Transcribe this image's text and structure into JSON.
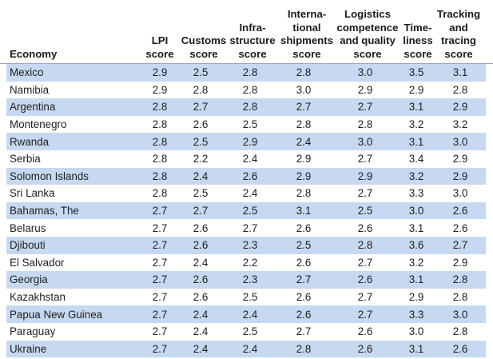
{
  "table": {
    "columns": [
      "Economy",
      "LPI\nscore",
      "Customs\nscore",
      "Infra-\nstructure\nscore",
      "Interna-\ntional\nshipments\nscore",
      "Logistics\ncompetence\nand quality\nscore",
      "Time-\nliness\nscore",
      "Tracking\nand\ntracing\nscore"
    ],
    "rows": [
      [
        "Mexico",
        "2.9",
        "2.5",
        "2.8",
        "2.8",
        "3.0",
        "3.5",
        "3.1"
      ],
      [
        "Namibia",
        "2.9",
        "2.8",
        "2.8",
        "3.0",
        "2.9",
        "2.9",
        "2.8"
      ],
      [
        "Argentina",
        "2.8",
        "2.7",
        "2.8",
        "2.7",
        "2.7",
        "3.1",
        "2.9"
      ],
      [
        "Montenegro",
        "2.8",
        "2.6",
        "2.5",
        "2.8",
        "2.8",
        "3.2",
        "3.2"
      ],
      [
        "Rwanda",
        "2.8",
        "2.5",
        "2.9",
        "2.4",
        "3.0",
        "3.1",
        "3.0"
      ],
      [
        "Serbia",
        "2.8",
        "2.2",
        "2.4",
        "2.9",
        "2.7",
        "3.4",
        "2.9"
      ],
      [
        "Solomon Islands",
        "2.8",
        "2.4",
        "2.6",
        "2.9",
        "2.9",
        "3.2",
        "2.9"
      ],
      [
        "Sri Lanka",
        "2.8",
        "2.5",
        "2.4",
        "2.8",
        "2.7",
        "3.3",
        "3.0"
      ],
      [
        "Bahamas, The",
        "2.7",
        "2.7",
        "2.5",
        "3.1",
        "2.5",
        "3.0",
        "2.6"
      ],
      [
        "Belarus",
        "2.7",
        "2.6",
        "2.7",
        "2.6",
        "2.6",
        "3.1",
        "2.6"
      ],
      [
        "Djibouti",
        "2.7",
        "2.6",
        "2.3",
        "2.5",
        "2.8",
        "3.6",
        "2.7"
      ],
      [
        "El Salvador",
        "2.7",
        "2.4",
        "2.2",
        "2.6",
        "2.7",
        "3.2",
        "2.9"
      ],
      [
        "Georgia",
        "2.7",
        "2.6",
        "2.3",
        "2.7",
        "2.6",
        "3.1",
        "2.8"
      ],
      [
        "Kazakhstan",
        "2.7",
        "2.6",
        "2.5",
        "2.6",
        "2.7",
        "2.9",
        "2.8"
      ],
      [
        "Papua New Guinea",
        "2.7",
        "2.4",
        "2.4",
        "2.6",
        "2.7",
        "3.3",
        "3.0"
      ],
      [
        "Paraguay",
        "2.7",
        "2.4",
        "2.5",
        "2.7",
        "2.6",
        "3.0",
        "2.8"
      ],
      [
        "Ukraine",
        "2.7",
        "2.4",
        "2.4",
        "2.8",
        "2.6",
        "3.1",
        "2.6"
      ]
    ]
  },
  "colors": {
    "row_stripe": "#c6d9f1",
    "row_plain": "#ffffff",
    "header_rule": "#9aa7b8"
  }
}
